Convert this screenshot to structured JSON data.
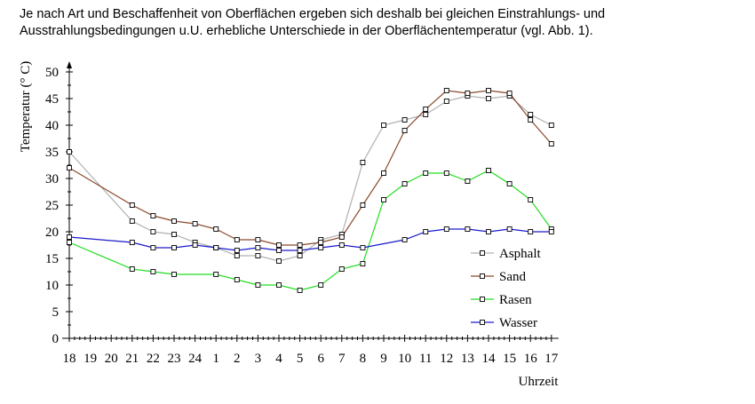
{
  "intro": {
    "line1": "Je nach Art und Beschaffenheit von Oberflächen ergeben sich deshalb bei gleichen Einstrahlungs- und",
    "line2": "Ausstrahlungsbedingungen u.U. erhebliche Unterschiede in der Oberflächentemperatur (vgl. Abb. 1)."
  },
  "chart_data": {
    "type": "line",
    "title": "",
    "xlabel": "Uhrzeit",
    "ylabel": "Temperatur (° C)",
    "ylim": [
      0,
      50
    ],
    "yticks": [
      0,
      5,
      10,
      15,
      20,
      25,
      30,
      35,
      40,
      45,
      50
    ],
    "xtick_labels": [
      "18",
      "19",
      "20",
      "21",
      "22",
      "23",
      "24",
      "1",
      "2",
      "3",
      "4",
      "5",
      "6",
      "7",
      "8",
      "9",
      "10",
      "11",
      "12",
      "13",
      "14",
      "15",
      "16",
      "17"
    ],
    "grid": false,
    "legend_position": "right",
    "series": [
      {
        "name": "Asphalt",
        "color": "#b0b0b0",
        "x": [
          0,
          3,
          4,
          5,
          6,
          7,
          8,
          9,
          10,
          11,
          12,
          13,
          14,
          15,
          16,
          17,
          18,
          19,
          20,
          21,
          22,
          23
        ],
        "y": [
          35,
          22,
          20,
          19.5,
          18,
          17,
          15.5,
          15.5,
          14.5,
          15.5,
          18.5,
          19.5,
          33,
          40,
          41,
          42,
          44.5,
          45.5,
          45,
          45.5,
          42,
          40
        ]
      },
      {
        "name": "Sand",
        "color": "#8b4a2b",
        "x": [
          0,
          3,
          4,
          5,
          6,
          7,
          8,
          9,
          10,
          11,
          12,
          13,
          14,
          15,
          16,
          17,
          18,
          19,
          20,
          21,
          22,
          23
        ],
        "y": [
          32,
          25,
          23,
          22,
          21.5,
          20.5,
          18.5,
          18.5,
          17.5,
          17.5,
          18,
          19,
          25,
          31,
          39,
          43,
          46.5,
          46,
          46.5,
          46,
          41,
          36.5
        ]
      },
      {
        "name": "Rasen",
        "color": "#22dd22",
        "x": [
          0,
          3,
          4,
          5,
          7,
          8,
          9,
          10,
          11,
          12,
          13,
          14,
          15,
          16,
          17,
          18,
          19,
          20,
          21,
          22,
          23
        ],
        "y": [
          18,
          13,
          12.5,
          12,
          12,
          11,
          10,
          10,
          9,
          10,
          13,
          14,
          26,
          29,
          31,
          31,
          29.5,
          31.5,
          29,
          26,
          20.5
        ]
      },
      {
        "name": "Wasser",
        "color": "#1a1acc",
        "x": [
          0,
          3,
          4,
          5,
          6,
          7,
          8,
          9,
          10,
          11,
          12,
          13,
          14,
          16,
          17,
          18,
          19,
          20,
          21,
          22,
          23
        ],
        "y": [
          19,
          18,
          17,
          17,
          17.5,
          17,
          16.5,
          17,
          16.5,
          16.5,
          17,
          17.5,
          17,
          18.5,
          20,
          20.5,
          20.5,
          20,
          20.5,
          20,
          20
        ]
      }
    ]
  }
}
